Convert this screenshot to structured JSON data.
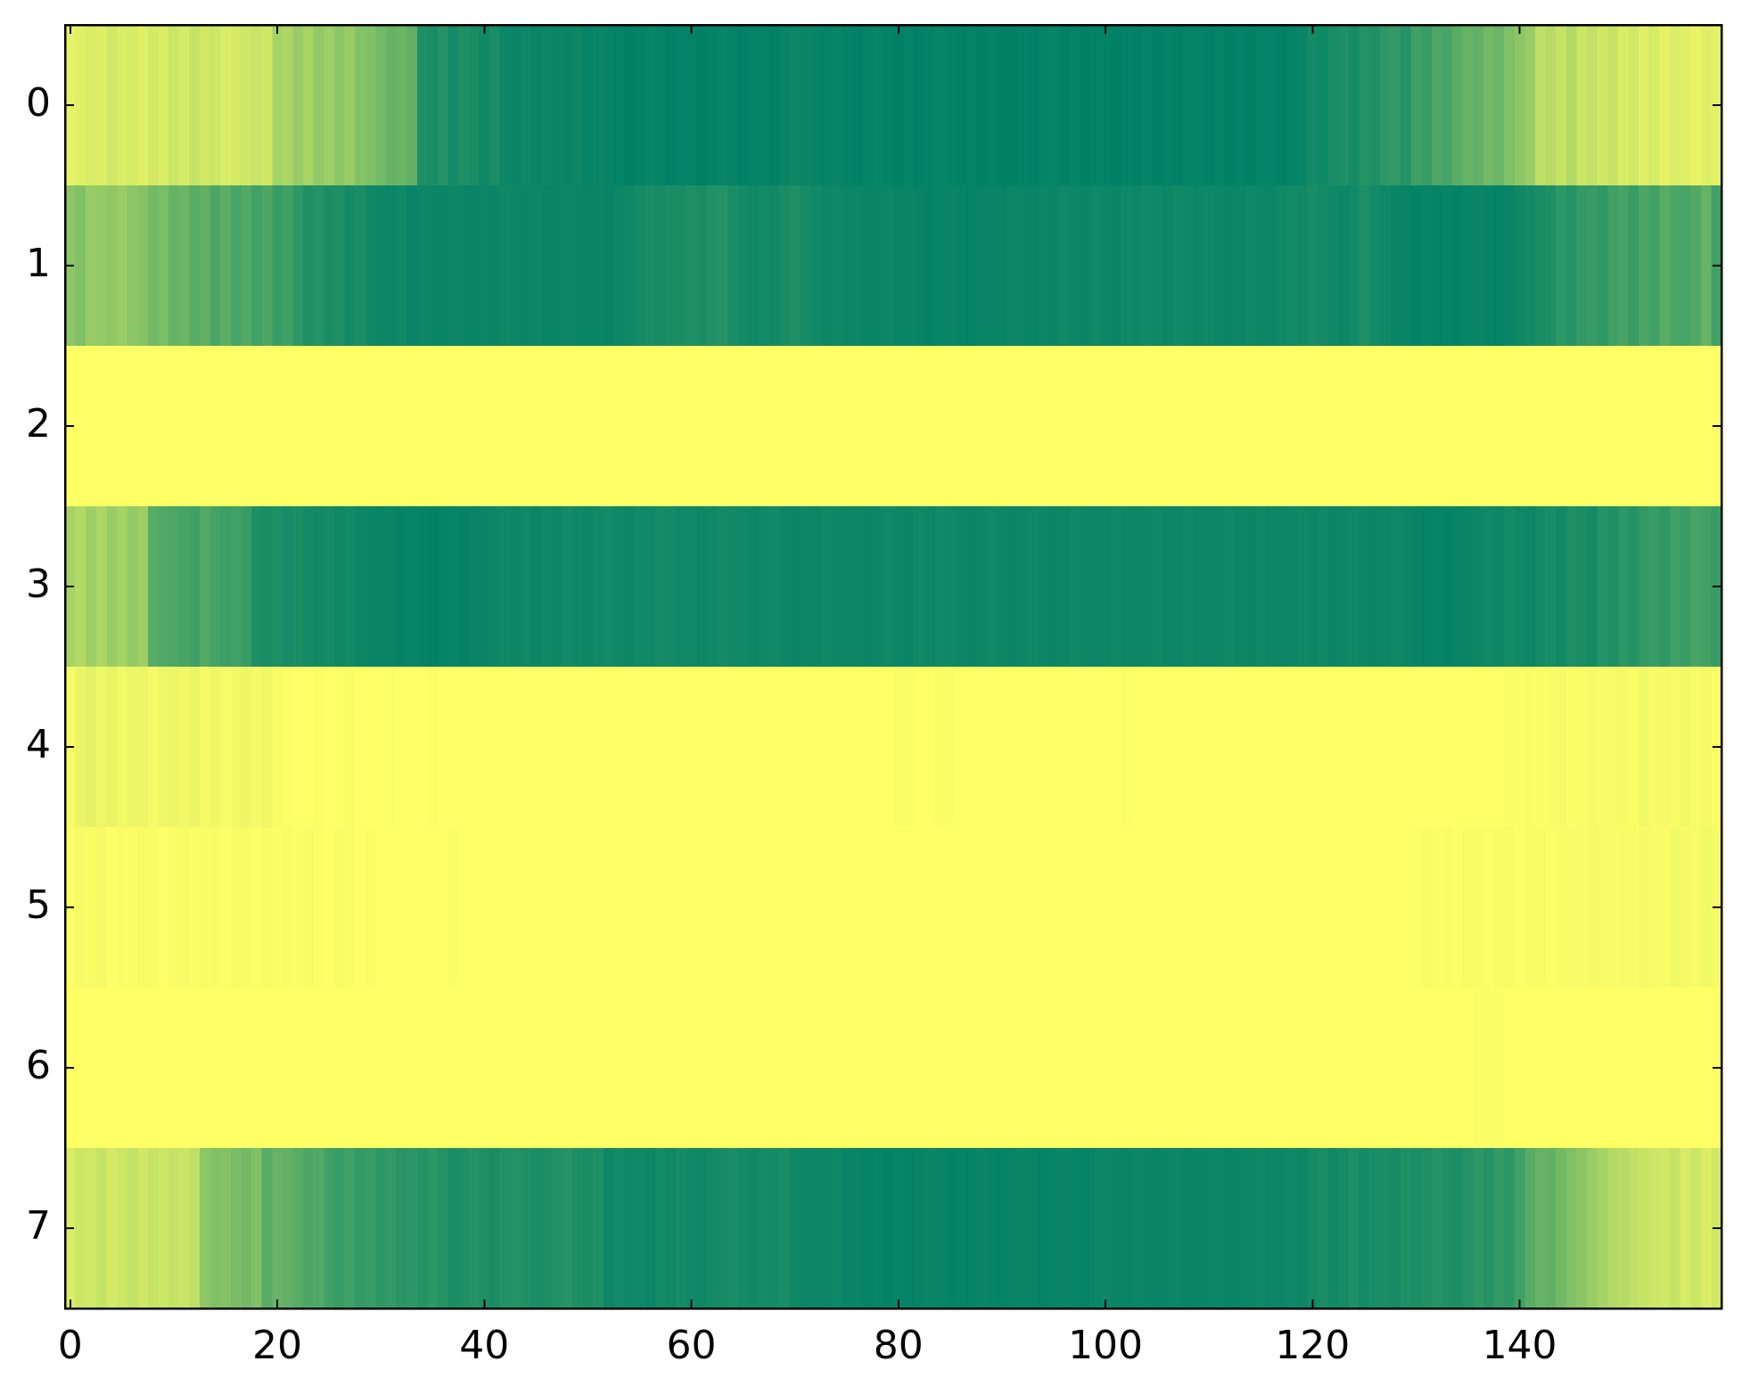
{
  "chart_data": {
    "type": "heatmap",
    "colormap": [
      "#008066",
      "#ffff66"
    ],
    "xlim": [
      -0.5,
      159.5
    ],
    "xticks": [
      0,
      20,
      40,
      60,
      80,
      100,
      120,
      140
    ],
    "ylim": [
      7.5,
      -0.5
    ],
    "yticks": [
      0,
      1,
      2,
      3,
      4,
      5,
      6,
      7
    ],
    "values": [
      [
        0.9,
        0.88,
        0.85,
        0.87,
        0.82,
        0.86,
        0.84,
        0.88,
        0.83,
        0.85,
        0.8,
        0.84,
        0.78,
        0.82,
        0.8,
        0.86,
        0.83,
        0.81,
        0.79,
        0.82,
        0.65,
        0.68,
        0.6,
        0.66,
        0.58,
        0.62,
        0.55,
        0.6,
        0.52,
        0.5,
        0.45,
        0.4,
        0.42,
        0.38,
        0.12,
        0.1,
        0.15,
        0.08,
        0.12,
        0.1,
        0.06,
        0.1,
        0.05,
        0.04,
        0.06,
        0.03,
        0.05,
        0.04,
        0.03,
        0.05,
        0.02,
        0.04,
        0.03,
        0.02,
        0.01,
        0.02,
        0.03,
        0.02,
        0.01,
        0.02,
        0.02,
        0.01,
        0.02,
        0.03,
        0.02,
        0.01,
        0.02,
        0.02,
        0.01,
        0.03,
        0.05,
        0.04,
        0.03,
        0.02,
        0.03,
        0.02,
        0.01,
        0.02,
        0.03,
        0.02,
        0.01,
        0.02,
        0.01,
        0.02,
        0.03,
        0.02,
        0.01,
        0.02,
        0.01,
        0.02,
        0.01,
        0.01,
        0.02,
        0.01,
        0.02,
        0.03,
        0.01,
        0.02,
        0.01,
        0.02,
        0.02,
        0.01,
        0.02,
        0.01,
        0.02,
        0.01,
        0.02,
        0.01,
        0.02,
        0.02,
        0.01,
        0.02,
        0.01,
        0.02,
        0.01,
        0.02,
        0.02,
        0.01,
        0.02,
        0.03,
        0.08,
        0.06,
        0.1,
        0.12,
        0.09,
        0.15,
        0.12,
        0.18,
        0.2,
        0.15,
        0.25,
        0.22,
        0.3,
        0.28,
        0.35,
        0.4,
        0.38,
        0.45,
        0.42,
        0.5,
        0.55,
        0.6,
        0.75,
        0.72,
        0.78,
        0.7,
        0.8,
        0.76,
        0.82,
        0.78,
        0.85,
        0.82,
        0.88,
        0.84,
        0.9,
        0.86,
        0.88,
        0.91,
        0.87,
        0.89
      ],
      [
        0.55,
        0.5,
        0.6,
        0.58,
        0.56,
        0.6,
        0.55,
        0.52,
        0.45,
        0.48,
        0.4,
        0.42,
        0.35,
        0.38,
        0.3,
        0.36,
        0.28,
        0.32,
        0.25,
        0.3,
        0.22,
        0.25,
        0.18,
        0.12,
        0.15,
        0.1,
        0.12,
        0.08,
        0.1,
        0.06,
        0.05,
        0.04,
        0.06,
        0.03,
        0.05,
        0.04,
        0.03,
        0.05,
        0.04,
        0.03,
        0.05,
        0.04,
        0.06,
        0.05,
        0.04,
        0.05,
        0.03,
        0.04,
        0.05,
        0.04,
        0.03,
        0.04,
        0.03,
        0.05,
        0.06,
        0.08,
        0.1,
        0.09,
        0.11,
        0.1,
        0.12,
        0.1,
        0.13,
        0.14,
        0.1,
        0.08,
        0.06,
        0.08,
        0.07,
        0.1,
        0.12,
        0.09,
        0.07,
        0.05,
        0.06,
        0.04,
        0.05,
        0.03,
        0.04,
        0.05,
        0.03,
        0.04,
        0.03,
        0.02,
        0.03,
        0.04,
        0.03,
        0.02,
        0.03,
        0.04,
        0.03,
        0.05,
        0.04,
        0.03,
        0.05,
        0.04,
        0.06,
        0.05,
        0.04,
        0.06,
        0.05,
        0.04,
        0.06,
        0.05,
        0.07,
        0.06,
        0.05,
        0.07,
        0.06,
        0.05,
        0.06,
        0.05,
        0.04,
        0.05,
        0.06,
        0.05,
        0.04,
        0.06,
        0.08,
        0.07,
        0.1,
        0.08,
        0.06,
        0.05,
        0.07,
        0.12,
        0.08,
        0.06,
        0.04,
        0.03,
        0.02,
        0.03,
        0.02,
        0.03,
        0.02,
        0.03,
        0.04,
        0.03,
        0.02,
        0.03,
        0.06,
        0.08,
        0.1,
        0.12,
        0.18,
        0.15,
        0.2,
        0.22,
        0.18,
        0.25,
        0.28,
        0.22,
        0.3,
        0.26,
        0.35,
        0.3,
        0.28,
        0.32,
        0.4,
        0.25
      ],
      [
        1,
        1,
        1,
        1,
        1,
        1,
        1,
        1,
        1,
        1,
        1,
        1,
        1,
        1,
        1,
        1,
        1,
        1,
        1,
        1,
        1,
        1,
        1,
        1,
        1,
        1,
        1,
        1,
        1,
        1,
        1,
        1,
        1,
        1,
        1,
        1,
        1,
        1,
        1,
        1,
        1,
        1,
        1,
        1,
        1,
        1,
        1,
        1,
        1,
        1,
        1,
        1,
        1,
        1,
        1,
        1,
        1,
        1,
        1,
        1,
        1,
        1,
        1,
        1,
        1,
        1,
        1,
        1,
        1,
        1,
        1,
        1,
        1,
        1,
        1,
        1,
        1,
        1,
        1,
        1,
        1,
        1,
        1,
        1,
        1,
        1,
        1,
        1,
        1,
        1,
        1,
        1,
        1,
        1,
        1,
        1,
        1,
        1,
        1,
        1,
        1,
        1,
        1,
        1,
        1,
        1,
        1,
        1,
        1,
        1,
        1,
        1,
        1,
        1,
        1,
        1,
        1,
        1,
        1,
        1,
        1,
        1,
        1,
        1,
        1,
        1,
        1,
        1,
        1,
        1,
        1,
        1,
        1,
        1,
        1,
        1,
        1,
        1,
        1,
        1,
        1,
        1,
        1,
        1,
        1,
        1,
        1,
        1,
        1,
        1,
        1,
        1,
        1,
        1,
        1,
        1,
        1,
        1,
        1,
        1
      ],
      [
        0.65,
        0.7,
        0.62,
        0.68,
        0.6,
        0.65,
        0.58,
        0.62,
        0.35,
        0.32,
        0.3,
        0.28,
        0.25,
        0.32,
        0.27,
        0.24,
        0.26,
        0.22,
        0.12,
        0.1,
        0.12,
        0.09,
        0.11,
        0.08,
        0.07,
        0.09,
        0.06,
        0.08,
        0.05,
        0.04,
        0.03,
        0.04,
        0.02,
        0.03,
        0.02,
        0.01,
        0.02,
        0.03,
        0.02,
        0.03,
        0.04,
        0.05,
        0.06,
        0.05,
        0.07,
        0.04,
        0.06,
        0.05,
        0.08,
        0.06,
        0.05,
        0.07,
        0.08,
        0.06,
        0.05,
        0.07,
        0.06,
        0.09,
        0.08,
        0.06,
        0.07,
        0.05,
        0.06,
        0.08,
        0.07,
        0.06,
        0.05,
        0.06,
        0.07,
        0.05,
        0.04,
        0.05,
        0.04,
        0.06,
        0.05,
        0.04,
        0.05,
        0.04,
        0.05,
        0.06,
        0.05,
        0.04,
        0.06,
        0.05,
        0.07,
        0.06,
        0.05,
        0.04,
        0.05,
        0.06,
        0.05,
        0.04,
        0.05,
        0.06,
        0.05,
        0.04,
        0.05,
        0.06,
        0.05,
        0.04,
        0.05,
        0.06,
        0.05,
        0.04,
        0.05,
        0.06,
        0.05,
        0.04,
        0.06,
        0.05,
        0.04,
        0.05,
        0.06,
        0.05,
        0.04,
        0.06,
        0.05,
        0.04,
        0.05,
        0.06,
        0.05,
        0.06,
        0.04,
        0.05,
        0.06,
        0.05,
        0.04,
        0.05,
        0.06,
        0.04,
        0.03,
        0.02,
        0.03,
        0.02,
        0.03,
        0.04,
        0.05,
        0.06,
        0.05,
        0.08,
        0.06,
        0.05,
        0.08,
        0.1,
        0.07,
        0.12,
        0.1,
        0.08,
        0.15,
        0.12,
        0.18,
        0.15,
        0.2,
        0.22,
        0.18,
        0.25,
        0.22,
        0.28,
        0.25,
        0.22
      ],
      [
        0.97,
        0.92,
        0.9,
        0.94,
        0.91,
        0.95,
        0.93,
        0.92,
        0.96,
        0.94,
        0.93,
        0.95,
        0.92,
        0.96,
        0.94,
        0.97,
        0.95,
        0.93,
        0.96,
        0.94,
        0.98,
        0.99,
        1,
        1,
        0.99,
        1,
        1,
        0.99,
        1,
        1,
        1,
        0.99,
        1,
        1,
        1,
        0.99,
        1,
        1,
        1,
        1,
        1,
        1,
        1,
        1,
        1,
        1,
        1,
        1,
        1,
        1,
        1,
        1,
        1,
        1,
        1,
        1,
        1,
        1,
        1,
        1,
        1,
        1,
        1,
        1,
        1,
        1,
        1,
        1,
        1,
        1,
        1,
        1,
        1,
        1,
        1,
        1,
        1,
        1,
        1,
        1,
        0.99,
        0.99,
        1,
        1,
        0.99,
        0.99,
        1,
        1,
        1,
        1,
        1,
        1,
        1,
        1,
        1,
        1,
        1,
        1,
        1,
        1,
        1,
        1,
        0.99,
        1,
        1,
        1,
        1,
        1,
        1,
        1,
        1,
        1,
        1,
        1,
        1,
        1,
        1,
        1,
        1,
        1,
        1,
        1,
        1,
        1,
        1,
        1,
        1,
        1,
        1,
        1,
        1,
        1,
        1,
        1,
        1,
        1,
        1,
        1,
        1,
        0.99,
        0.99,
        0.98,
        0.99,
        0.98,
        0.97,
        0.99,
        0.98,
        0.96,
        0.98,
        0.97,
        0.96,
        0.98,
        0.95,
        0.97,
        0.96,
        0.98,
        0.95,
        0.97,
        0.96,
        0.98
      ],
      [
        0.99,
        0.97,
        0.98,
        0.96,
        1,
        0.98,
        0.99,
        0.97,
        0.98,
        1,
        0.98,
        0.97,
        0.99,
        0.98,
        0.97,
        0.99,
        0.98,
        0.97,
        0.99,
        0.98,
        0.99,
        0.98,
        0.99,
        0.97,
        0.99,
        1,
        0.98,
        0.99,
        1,
        0.99,
        1,
        1,
        1,
        1,
        1,
        1,
        1,
        0.99,
        1,
        1,
        1,
        1,
        1,
        1,
        1,
        1,
        1,
        1,
        1,
        1,
        1,
        1,
        1,
        1,
        1,
        1,
        1,
        1,
        1,
        1,
        1,
        1,
        1,
        1,
        1,
        1,
        1,
        1,
        1,
        1,
        1,
        1,
        1,
        1,
        1,
        1,
        1,
        1,
        1,
        1,
        1,
        1,
        1,
        1,
        1,
        1,
        1,
        1,
        1,
        1,
        1,
        1,
        1,
        1,
        1,
        1,
        1,
        1,
        1,
        1,
        1,
        1,
        1,
        1,
        1,
        1,
        1,
        1,
        1,
        1,
        1,
        1,
        1,
        1,
        1,
        1,
        1,
        1,
        1,
        1,
        1,
        1,
        1,
        1,
        1,
        1,
        1,
        1,
        1,
        1,
        0.99,
        0.98,
        0.99,
        0.98,
        0.99,
        0.97,
        0.98,
        0.99,
        0.97,
        0.98,
        0.99,
        0.98,
        0.97,
        0.99,
        0.98,
        0.97,
        0.98,
        0.96,
        0.97,
        0.98,
        0.97,
        0.98,
        0.96,
        0.97,
        0.98,
        0.95,
        0.96,
        0.97,
        0.95,
        0.96
      ],
      [
        1,
        1,
        1,
        1,
        1,
        1,
        1,
        1,
        1,
        1,
        1,
        1,
        1,
        1,
        1,
        1,
        1,
        1,
        1,
        1,
        1,
        1,
        1,
        1,
        1,
        1,
        1,
        1,
        1,
        1,
        1,
        1,
        1,
        1,
        1,
        1,
        1,
        1,
        1,
        1,
        1,
        1,
        1,
        1,
        1,
        1,
        1,
        1,
        1,
        1,
        1,
        1,
        1,
        1,
        1,
        1,
        1,
        1,
        1,
        1,
        1,
        1,
        1,
        1,
        1,
        1,
        1,
        1,
        1,
        1,
        1,
        1,
        1,
        1,
        1,
        1,
        1,
        1,
        1,
        1,
        1,
        1,
        1,
        1,
        1,
        1,
        1,
        1,
        1,
        1,
        1,
        1,
        1,
        1,
        1,
        1,
        1,
        1,
        1,
        1,
        1,
        1,
        1,
        1,
        1,
        1,
        1,
        1,
        1,
        1,
        1,
        1,
        1,
        1,
        1,
        1,
        1,
        1,
        1,
        1,
        1,
        1,
        1,
        1,
        1,
        1,
        1,
        1,
        1,
        1,
        1,
        1,
        1,
        1,
        1,
        1,
        0.99,
        0.99,
        0.99,
        1,
        1,
        1,
        1,
        1,
        1,
        1,
        1,
        1,
        1,
        1,
        1,
        1,
        1,
        1,
        1,
        1,
        1,
        1,
        1,
        1
      ],
      [
        0.85,
        0.8,
        0.82,
        0.78,
        0.83,
        0.8,
        0.76,
        0.82,
        0.78,
        0.8,
        0.77,
        0.79,
        0.75,
        0.55,
        0.5,
        0.52,
        0.48,
        0.45,
        0.5,
        0.35,
        0.4,
        0.38,
        0.35,
        0.3,
        0.32,
        0.25,
        0.22,
        0.25,
        0.2,
        0.22,
        0.18,
        0.2,
        0.16,
        0.18,
        0.15,
        0.17,
        0.14,
        0.1,
        0.12,
        0.15,
        0.12,
        0.1,
        0.13,
        0.14,
        0.12,
        0.1,
        0.11,
        0.13,
        0.15,
        0.12,
        0.1,
        0.12,
        0.05,
        0.08,
        0.06,
        0.07,
        0.05,
        0.08,
        0.06,
        0.09,
        0.07,
        0.06,
        0.08,
        0.09,
        0.1,
        0.08,
        0.07,
        0.09,
        0.08,
        0.1,
        0.06,
        0.05,
        0.04,
        0.05,
        0.06,
        0.03,
        0.04,
        0.02,
        0.03,
        0.02,
        0.03,
        0.02,
        0.03,
        0.04,
        0.03,
        0.02,
        0.03,
        0.02,
        0.04,
        0.03,
        0.02,
        0.03,
        0.04,
        0.03,
        0.02,
        0.03,
        0.04,
        0.03,
        0.02,
        0.04,
        0.05,
        0.04,
        0.03,
        0.05,
        0.04,
        0.03,
        0.04,
        0.05,
        0.03,
        0.04,
        0.04,
        0.05,
        0.03,
        0.04,
        0.05,
        0.06,
        0.05,
        0.04,
        0.06,
        0.05,
        0.08,
        0.1,
        0.07,
        0.09,
        0.12,
        0.08,
        0.1,
        0.11,
        0.09,
        0.12,
        0.1,
        0.12,
        0.15,
        0.12,
        0.1,
        0.14,
        0.18,
        0.15,
        0.2,
        0.18,
        0.25,
        0.35,
        0.4,
        0.38,
        0.45,
        0.5,
        0.55,
        0.6,
        0.65,
        0.7,
        0.72,
        0.75,
        0.78,
        0.8,
        0.82,
        0.78,
        0.84,
        0.8,
        0.86,
        0.82
      ]
    ]
  }
}
